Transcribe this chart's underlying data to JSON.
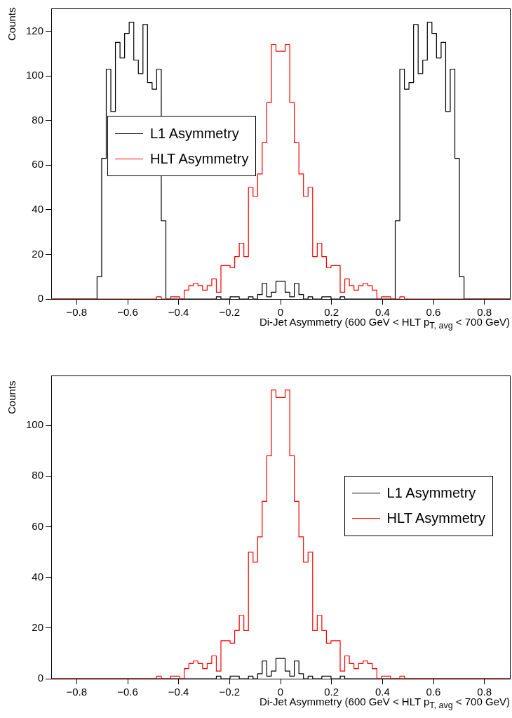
{
  "chart_data": [
    {
      "type": "histogram",
      "xlabel": "Di-Jet Asymmetry (600 GeV < HLT p$_{T, avg}$ < 700 GeV)",
      "ylabel": "Counts",
      "legend": "left",
      "bins": [
        -0.9,
        -0.882,
        -0.864,
        -0.846,
        -0.828,
        -0.81,
        -0.792,
        -0.774,
        -0.756,
        -0.738,
        -0.72,
        -0.702,
        -0.684,
        -0.666,
        -0.648,
        -0.63,
        -0.612,
        -0.594,
        -0.576,
        -0.558,
        -0.54,
        -0.522,
        -0.504,
        -0.486,
        -0.468,
        -0.45,
        -0.432,
        -0.414,
        -0.396,
        -0.378,
        -0.36,
        -0.342,
        -0.324,
        -0.306,
        -0.288,
        -0.27,
        -0.252,
        -0.234,
        -0.216,
        -0.198,
        -0.18,
        -0.162,
        -0.144,
        -0.126,
        -0.108,
        -0.09,
        -0.072,
        -0.054,
        -0.036,
        -0.018,
        0,
        0.018,
        0.036,
        0.054,
        0.072,
        0.09,
        0.108,
        0.126,
        0.144,
        0.162,
        0.18,
        0.198,
        0.216,
        0.234,
        0.252,
        0.27,
        0.288,
        0.306,
        0.324,
        0.342,
        0.36,
        0.378,
        0.396,
        0.414,
        0.432,
        0.45,
        0.468,
        0.486,
        0.504,
        0.522,
        0.54,
        0.558,
        0.576,
        0.594,
        0.612,
        0.63,
        0.648,
        0.666,
        0.684,
        0.702,
        0.72,
        0.738,
        0.756,
        0.774,
        0.792,
        0.81,
        0.828,
        0.846,
        0.864,
        0.882,
        0.9
      ],
      "series": [
        {
          "name": "L1 Asymmetry",
          "color": "#000000",
          "values": [
            0,
            0,
            0,
            0,
            0,
            0,
            0,
            0,
            0,
            0,
            10,
            63,
            103,
            84,
            115,
            108,
            119,
            124,
            107,
            101,
            123,
            97,
            94,
            103,
            35,
            0,
            0,
            0,
            0,
            0,
            0,
            0,
            0,
            0,
            0,
            0,
            1,
            0,
            0,
            1,
            1,
            0,
            0,
            1,
            0,
            2,
            7,
            1,
            3,
            8,
            8,
            3,
            1,
            7,
            2,
            0,
            1,
            0,
            0,
            1,
            1,
            0,
            0,
            1,
            0,
            0,
            0,
            0,
            0,
            0,
            0,
            0,
            0,
            0,
            0,
            35,
            103,
            94,
            97,
            123,
            101,
            107,
            124,
            119,
            108,
            115,
            84,
            103,
            63,
            10,
            0,
            0,
            0,
            0,
            0,
            0,
            0,
            0,
            0,
            0
          ]
        },
        {
          "name": "HLT Asymmetry",
          "color": "#ff0000",
          "values": [
            0,
            0,
            0,
            0,
            0,
            0,
            0,
            0,
            0,
            0,
            0,
            0,
            0,
            0,
            0,
            0,
            0,
            0,
            0,
            0,
            0,
            0,
            0,
            1,
            0,
            0,
            1,
            1,
            0,
            4,
            6,
            7,
            6,
            4,
            6,
            9,
            3,
            15,
            15,
            14,
            19,
            25,
            19,
            50,
            46,
            56,
            70,
            88,
            114,
            111,
            111,
            114,
            88,
            70,
            56,
            46,
            50,
            19,
            25,
            19,
            14,
            15,
            15,
            3,
            9,
            6,
            4,
            6,
            7,
            6,
            4,
            0,
            1,
            1,
            0,
            0,
            1,
            0,
            0,
            0,
            0,
            0,
            0,
            0,
            0,
            0,
            0,
            0,
            0,
            0,
            0,
            0,
            0,
            0,
            0,
            0,
            0,
            0,
            0,
            0
          ]
        }
      ],
      "xlim": [
        -0.9,
        0.9
      ],
      "xticks": [
        -0.8,
        -0.6,
        -0.4,
        -0.2,
        0,
        0.2,
        0.4,
        0.6,
        0.8
      ],
      "ylim": [
        0,
        130.2
      ],
      "yticks": [
        0,
        20,
        40,
        60,
        80,
        100,
        120
      ]
    },
    {
      "type": "histogram",
      "xlabel": "Di-Jet Asymmetry (600 GeV < HLT p$_{T, avg}$ < 700 GeV)",
      "ylabel": "Counts",
      "legend": "right",
      "bins": [
        -0.9,
        -0.882,
        -0.864,
        -0.846,
        -0.828,
        -0.81,
        -0.792,
        -0.774,
        -0.756,
        -0.738,
        -0.72,
        -0.702,
        -0.684,
        -0.666,
        -0.648,
        -0.63,
        -0.612,
        -0.594,
        -0.576,
        -0.558,
        -0.54,
        -0.522,
        -0.504,
        -0.486,
        -0.468,
        -0.45,
        -0.432,
        -0.414,
        -0.396,
        -0.378,
        -0.36,
        -0.342,
        -0.324,
        -0.306,
        -0.288,
        -0.27,
        -0.252,
        -0.234,
        -0.216,
        -0.198,
        -0.18,
        -0.162,
        -0.144,
        -0.126,
        -0.108,
        -0.09,
        -0.072,
        -0.054,
        -0.036,
        -0.018,
        0,
        0.018,
        0.036,
        0.054,
        0.072,
        0.09,
        0.108,
        0.126,
        0.144,
        0.162,
        0.18,
        0.198,
        0.216,
        0.234,
        0.252,
        0.27,
        0.288,
        0.306,
        0.324,
        0.342,
        0.36,
        0.378,
        0.396,
        0.414,
        0.432,
        0.45,
        0.468,
        0.486,
        0.504,
        0.522,
        0.54,
        0.558,
        0.576,
        0.594,
        0.612,
        0.63,
        0.648,
        0.666,
        0.684,
        0.702,
        0.72,
        0.738,
        0.756,
        0.774,
        0.792,
        0.81,
        0.828,
        0.846,
        0.864,
        0.882,
        0.9
      ],
      "series": [
        {
          "name": "L1 Asymmetry",
          "color": "#000000",
          "values": [
            0,
            0,
            0,
            0,
            0,
            0,
            0,
            0,
            0,
            0,
            0,
            0,
            0,
            0,
            0,
            0,
            0,
            0,
            0,
            0,
            0,
            0,
            0,
            0,
            0,
            0,
            0,
            0,
            0,
            0,
            0,
            0,
            0,
            0,
            0,
            0,
            1,
            0,
            0,
            1,
            1,
            0,
            0,
            1,
            0,
            2,
            7,
            1,
            3,
            8,
            8,
            3,
            1,
            7,
            2,
            0,
            1,
            0,
            0,
            1,
            1,
            0,
            0,
            1,
            0,
            0,
            0,
            0,
            0,
            0,
            0,
            0,
            0,
            0,
            0,
            0,
            0,
            0,
            0,
            0,
            0,
            0,
            0,
            0,
            0,
            0,
            0,
            0,
            0,
            0,
            0,
            0,
            0,
            0,
            0,
            0,
            0,
            0,
            0,
            0
          ]
        },
        {
          "name": "HLT Asymmetry",
          "color": "#ff0000",
          "values": [
            0,
            0,
            0,
            0,
            0,
            0,
            0,
            0,
            0,
            0,
            0,
            0,
            0,
            0,
            0,
            0,
            0,
            0,
            0,
            0,
            0,
            0,
            0,
            1,
            0,
            0,
            1,
            1,
            0,
            4,
            6,
            7,
            6,
            4,
            6,
            9,
            3,
            15,
            15,
            14,
            19,
            25,
            19,
            50,
            46,
            56,
            70,
            88,
            114,
            111,
            111,
            114,
            88,
            70,
            56,
            46,
            50,
            19,
            25,
            19,
            14,
            15,
            15,
            3,
            9,
            6,
            4,
            6,
            7,
            6,
            4,
            0,
            1,
            1,
            0,
            0,
            1,
            0,
            0,
            0,
            0,
            0,
            0,
            0,
            0,
            0,
            0,
            0,
            0,
            0,
            0,
            0,
            0,
            0,
            0,
            0,
            0,
            0,
            0,
            0
          ]
        }
      ],
      "xlim": [
        -0.9,
        0.9
      ],
      "xticks": [
        -0.8,
        -0.6,
        -0.4,
        -0.2,
        0,
        0.2,
        0.4,
        0.6,
        0.8
      ],
      "ylim": [
        0,
        119.7
      ],
      "yticks": [
        0,
        20,
        40,
        60,
        80,
        100
      ]
    }
  ]
}
